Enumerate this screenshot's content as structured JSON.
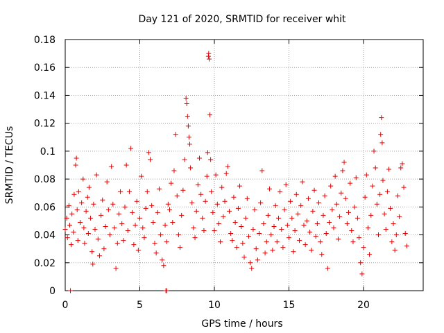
{
  "chart_data": {
    "type": "scatter",
    "title": "Day 121 of 2020, SRMTID for receiver whit",
    "xlabel": "GPS time / hours",
    "ylabel": "SRMTID / TECUs",
    "xlim": [
      0,
      24
    ],
    "ylim": [
      0,
      0.18
    ],
    "x_ticks": [
      0,
      5,
      10,
      15,
      20
    ],
    "y_ticks": [
      0,
      0.02,
      0.04,
      0.06,
      0.08,
      0.1,
      0.12,
      0.14,
      0.16,
      0.18
    ],
    "x_tick_labels": [
      "0",
      "5",
      "10",
      "15",
      "20"
    ],
    "y_tick_labels": [
      "0",
      "0.02",
      "0.04",
      "0.06",
      "0.08",
      "0.1",
      "0.12",
      "0.14",
      "0.16",
      "0.18"
    ],
    "grid": true,
    "marker": "+",
    "color": "#e00000",
    "series": [
      {
        "name": "SRMTID",
        "points": [
          [
            0.0,
            0.044
          ],
          [
            0.1,
            0.052
          ],
          [
            0.15,
            0.038
          ],
          [
            0.25,
            0.061
          ],
          [
            0.3,
            0.047
          ],
          [
            0.4,
            0.033
          ],
          [
            0.45,
            0.055
          ],
          [
            0.55,
            0.042
          ],
          [
            0.6,
            0.069
          ],
          [
            0.7,
            0.09
          ],
          [
            0.75,
            0.095
          ],
          [
            0.8,
            0.058
          ],
          [
            0.85,
            0.036
          ],
          [
            0.9,
            0.071
          ],
          [
            1.0,
            0.049
          ],
          [
            1.1,
            0.063
          ],
          [
            1.2,
            0.08
          ],
          [
            1.25,
            0.045
          ],
          [
            1.3,
            0.034
          ],
          [
            1.4,
            0.057
          ],
          [
            1.5,
            0.067
          ],
          [
            1.55,
            0.041
          ],
          [
            1.6,
            0.074
          ],
          [
            1.7,
            0.052
          ],
          [
            1.8,
            0.028
          ],
          [
            1.85,
            0.019
          ],
          [
            1.9,
            0.062
          ],
          [
            2.0,
            0.044
          ],
          [
            2.1,
            0.083
          ],
          [
            2.2,
            0.037
          ],
          [
            2.3,
            0.025
          ],
          [
            2.4,
            0.054
          ],
          [
            2.5,
            0.065
          ],
          [
            2.6,
            0.03
          ],
          [
            2.7,
            0.046
          ],
          [
            2.8,
            0.078
          ],
          [
            2.9,
            0.058
          ],
          [
            3.0,
            0.04
          ],
          [
            3.1,
            0.089
          ],
          [
            3.2,
            0.062
          ],
          [
            3.3,
            0.045
          ],
          [
            3.4,
            0.016
          ],
          [
            3.5,
            0.034
          ],
          [
            3.6,
            0.055
          ],
          [
            3.7,
            0.071
          ],
          [
            3.8,
            0.048
          ],
          [
            3.9,
            0.036
          ],
          [
            4.0,
            0.06
          ],
          [
            4.1,
            0.09
          ],
          [
            4.2,
            0.043
          ],
          [
            4.3,
            0.071
          ],
          [
            4.4,
            0.102
          ],
          [
            4.5,
            0.056
          ],
          [
            4.6,
            0.033
          ],
          [
            4.7,
            0.047
          ],
          [
            4.8,
            0.064
          ],
          [
            4.9,
            0.029
          ],
          [
            5.0,
            0.052
          ],
          [
            5.1,
            0.082
          ],
          [
            5.2,
            0.045
          ],
          [
            5.3,
            0.038
          ],
          [
            5.4,
            0.059
          ],
          [
            5.5,
            0.071
          ],
          [
            5.6,
            0.099
          ],
          [
            5.7,
            0.094
          ],
          [
            5.8,
            0.061
          ],
          [
            5.9,
            0.049
          ],
          [
            6.0,
            0.034
          ],
          [
            6.1,
            0.027
          ],
          [
            6.2,
            0.056
          ],
          [
            6.3,
            0.073
          ],
          [
            6.4,
            0.04
          ],
          [
            6.5,
            0.022
          ],
          [
            6.6,
            0.018
          ],
          [
            6.7,
            0.047
          ],
          [
            6.8,
            0.035
          ],
          [
            6.9,
            0.062
          ],
          [
            7.0,
            0.058
          ],
          [
            7.1,
            0.077
          ],
          [
            7.2,
            0.049
          ],
          [
            7.3,
            0.086
          ],
          [
            7.4,
            0.112
          ],
          [
            7.5,
            0.068
          ],
          [
            7.6,
            0.04
          ],
          [
            7.7,
            0.031
          ],
          [
            7.8,
            0.054
          ],
          [
            7.9,
            0.072
          ],
          [
            8.0,
            0.094
          ],
          [
            8.1,
            0.138
          ],
          [
            8.15,
            0.134
          ],
          [
            8.2,
            0.125
          ],
          [
            8.25,
            0.118
          ],
          [
            8.3,
            0.11
          ],
          [
            8.35,
            0.105
          ],
          [
            8.4,
            0.088
          ],
          [
            8.5,
            0.063
          ],
          [
            8.6,
            0.045
          ],
          [
            8.7,
            0.038
          ],
          [
            8.8,
            0.057
          ],
          [
            8.9,
            0.076
          ],
          [
            9.0,
            0.095
          ],
          [
            9.1,
            0.069
          ],
          [
            9.2,
            0.052
          ],
          [
            9.3,
            0.043
          ],
          [
            9.4,
            0.064
          ],
          [
            9.5,
            0.082
          ],
          [
            9.55,
            0.099
          ],
          [
            9.6,
            0.168
          ],
          [
            9.62,
            0.17
          ],
          [
            9.65,
            0.166
          ],
          [
            9.7,
            0.126
          ],
          [
            9.75,
            0.094
          ],
          [
            9.8,
            0.071
          ],
          [
            9.9,
            0.056
          ],
          [
            10.0,
            0.043
          ],
          [
            10.1,
            0.083
          ],
          [
            10.2,
            0.062
          ],
          [
            10.3,
            0.048
          ],
          [
            10.4,
            0.035
          ],
          [
            10.5,
            0.074
          ],
          [
            10.6,
            0.053
          ],
          [
            10.7,
            0.064
          ],
          [
            10.8,
            0.084
          ],
          [
            10.9,
            0.089
          ],
          [
            11.0,
            0.057
          ],
          [
            11.1,
            0.041
          ],
          [
            11.2,
            0.036
          ],
          [
            11.3,
            0.067
          ],
          [
            11.4,
            0.049
          ],
          [
            11.5,
            0.031
          ],
          [
            11.6,
            0.059
          ],
          [
            11.7,
            0.075
          ],
          [
            11.8,
            0.046
          ],
          [
            11.9,
            0.034
          ],
          [
            12.0,
            0.024
          ],
          [
            12.1,
            0.052
          ],
          [
            12.2,
            0.066
          ],
          [
            12.3,
            0.039
          ],
          [
            12.4,
            0.02
          ],
          [
            12.5,
            0.016
          ],
          [
            12.6,
            0.044
          ],
          [
            12.7,
            0.058
          ],
          [
            12.8,
            0.03
          ],
          [
            12.9,
            0.022
          ],
          [
            13.0,
            0.041
          ],
          [
            13.1,
            0.063
          ],
          [
            13.2,
            0.086
          ],
          [
            13.3,
            0.048
          ],
          [
            13.4,
            0.027
          ],
          [
            13.5,
            0.035
          ],
          [
            13.6,
            0.054
          ],
          [
            13.7,
            0.073
          ],
          [
            13.8,
            0.04
          ],
          [
            13.9,
            0.029
          ],
          [
            14.0,
            0.046
          ],
          [
            14.1,
            0.061
          ],
          [
            14.2,
            0.035
          ],
          [
            14.3,
            0.052
          ],
          [
            14.4,
            0.071
          ],
          [
            14.5,
            0.044
          ],
          [
            14.6,
            0.031
          ],
          [
            14.7,
            0.058
          ],
          [
            14.8,
            0.076
          ],
          [
            14.9,
            0.047
          ],
          [
            15.0,
            0.038
          ],
          [
            15.1,
            0.064
          ],
          [
            15.2,
            0.052
          ],
          [
            15.3,
            0.028
          ],
          [
            15.4,
            0.043
          ],
          [
            15.5,
            0.069
          ],
          [
            15.6,
            0.055
          ],
          [
            15.7,
            0.036
          ],
          [
            15.8,
            0.061
          ],
          [
            15.9,
            0.078
          ],
          [
            16.0,
            0.047
          ],
          [
            16.1,
            0.033
          ],
          [
            16.2,
            0.05
          ],
          [
            16.3,
            0.066
          ],
          [
            16.4,
            0.042
          ],
          [
            16.5,
            0.029
          ],
          [
            16.6,
            0.057
          ],
          [
            16.7,
            0.072
          ],
          [
            16.8,
            0.039
          ],
          [
            16.9,
            0.048
          ],
          [
            17.0,
            0.063
          ],
          [
            17.1,
            0.035
          ],
          [
            17.2,
            0.026
          ],
          [
            17.3,
            0.054
          ],
          [
            17.4,
            0.068
          ],
          [
            17.5,
            0.041
          ],
          [
            17.6,
            0.016
          ],
          [
            17.7,
            0.049
          ],
          [
            17.8,
            0.075
          ],
          [
            17.9,
            0.058
          ],
          [
            18.0,
            0.045
          ],
          [
            18.1,
            0.082
          ],
          [
            18.2,
            0.062
          ],
          [
            18.3,
            0.037
          ],
          [
            18.4,
            0.053
          ],
          [
            18.5,
            0.07
          ],
          [
            18.6,
            0.086
          ],
          [
            18.7,
            0.092
          ],
          [
            18.8,
            0.066
          ],
          [
            18.9,
            0.048
          ],
          [
            19.0,
            0.056
          ],
          [
            19.1,
            0.077
          ],
          [
            19.2,
            0.043
          ],
          [
            19.3,
            0.035
          ],
          [
            19.4,
            0.06
          ],
          [
            19.5,
            0.081
          ],
          [
            19.6,
            0.052
          ],
          [
            19.7,
            0.038
          ],
          [
            19.8,
            0.02
          ],
          [
            19.9,
            0.012
          ],
          [
            20.0,
            0.031
          ],
          [
            20.1,
            0.067
          ],
          [
            20.2,
            0.083
          ],
          [
            20.3,
            0.045
          ],
          [
            20.4,
            0.026
          ],
          [
            20.5,
            0.054
          ],
          [
            20.6,
            0.075
          ],
          [
            20.7,
            0.1
          ],
          [
            20.8,
            0.088
          ],
          [
            20.9,
            0.062
          ],
          [
            21.0,
            0.04
          ],
          [
            21.1,
            0.069
          ],
          [
            21.15,
            0.112
          ],
          [
            21.2,
            0.124
          ],
          [
            21.25,
            0.106
          ],
          [
            21.3,
            0.079
          ],
          [
            21.4,
            0.055
          ],
          [
            21.5,
            0.044
          ],
          [
            21.6,
            0.071
          ],
          [
            21.7,
            0.087
          ],
          [
            21.8,
            0.059
          ],
          [
            21.9,
            0.035
          ],
          [
            22.0,
            0.048
          ],
          [
            22.1,
            0.029
          ],
          [
            22.2,
            0.04
          ],
          [
            22.3,
            0.068
          ],
          [
            22.4,
            0.053
          ],
          [
            22.5,
            0.088
          ],
          [
            22.6,
            0.091
          ],
          [
            22.7,
            0.074
          ],
          [
            22.8,
            0.041
          ],
          [
            22.9,
            0.032
          ],
          [
            0.35,
            0.0
          ],
          [
            6.75,
            0.0
          ],
          [
            6.8,
            0.0
          ]
        ]
      }
    ]
  }
}
